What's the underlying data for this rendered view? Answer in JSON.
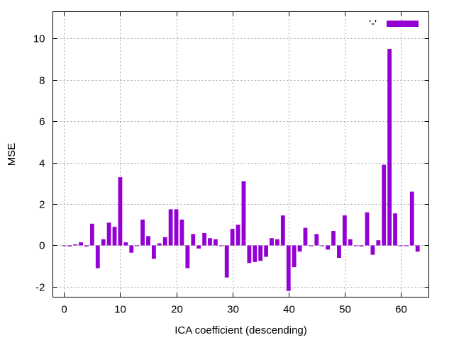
{
  "chart_data": {
    "type": "bar",
    "xlabel": "ICA coefficient (descending)",
    "ylabel": "MSE",
    "xlim": [
      -2,
      65
    ],
    "ylim": [
      -2.5,
      11.3
    ],
    "xticks": [
      0,
      10,
      20,
      30,
      40,
      50,
      60
    ],
    "yticks": [
      -2,
      0,
      2,
      4,
      6,
      8,
      10
    ],
    "grid": true,
    "legend_position": "top-right",
    "series": [
      {
        "name": "'-'",
        "color": "#9400d3",
        "x": [
          0,
          1,
          2,
          3,
          4,
          5,
          6,
          7,
          8,
          9,
          10,
          11,
          12,
          13,
          14,
          15,
          16,
          17,
          18,
          19,
          20,
          21,
          22,
          23,
          24,
          25,
          26,
          27,
          28,
          29,
          30,
          31,
          32,
          33,
          34,
          35,
          36,
          37,
          38,
          39,
          40,
          41,
          42,
          43,
          44,
          45,
          46,
          47,
          48,
          49,
          50,
          51,
          52,
          53,
          54,
          55,
          56,
          57,
          58,
          59,
          60,
          61,
          62,
          63
        ],
        "values": [
          0.0,
          -0.05,
          0.05,
          0.15,
          -0.05,
          1.05,
          -1.1,
          0.3,
          1.1,
          0.9,
          3.3,
          0.15,
          -0.35,
          0.0,
          1.25,
          0.45,
          -0.65,
          0.1,
          0.4,
          1.75,
          1.75,
          1.25,
          -1.1,
          0.55,
          -0.15,
          0.6,
          0.35,
          0.3,
          0.0,
          -1.55,
          0.8,
          1.0,
          3.1,
          -0.85,
          -0.8,
          -0.75,
          -0.55,
          0.35,
          0.3,
          1.45,
          -2.2,
          -1.05,
          -0.3,
          0.85,
          0.0,
          0.55,
          0.0,
          -0.2,
          0.7,
          -0.6,
          1.45,
          0.3,
          0.0,
          -0.05,
          1.6,
          -0.45,
          0.25,
          3.9,
          9.5,
          1.55,
          0.0,
          0.0,
          2.6,
          -0.3
        ]
      }
    ]
  }
}
